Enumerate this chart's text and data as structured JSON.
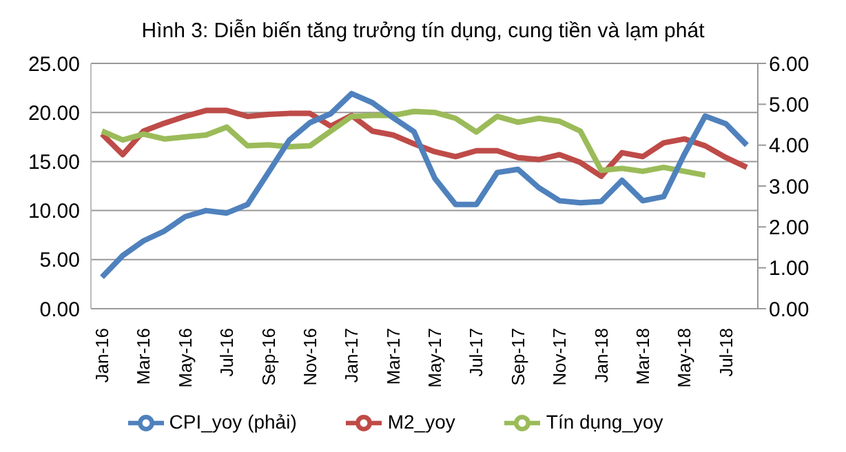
{
  "chart_data": {
    "type": "line",
    "title": "Hình 3: Diễn biến tăng trưởng tín dụng, cung tiền và lạm phát",
    "categories": [
      "Jan-16",
      null,
      "Mar-16",
      null,
      "May-16",
      null,
      "Jul-16",
      null,
      "Sep-16",
      null,
      "Nov-16",
      null,
      "Jan-17",
      null,
      "Mar-17",
      null,
      "May-17",
      null,
      "Jul-17",
      null,
      "Sep-17",
      null,
      "Nov-17",
      null,
      "Jan-18",
      null,
      "Mar-18",
      null,
      "May-18",
      null,
      "Jul-18",
      null
    ],
    "series": [
      {
        "name": "M2_yoy",
        "color": "#be4b48",
        "values": [
          17.8,
          15.7,
          18.1,
          18.9,
          19.6,
          20.2,
          20.2,
          19.6,
          19.8,
          19.9,
          19.9,
          18.6,
          19.7,
          18.1,
          17.7,
          16.8,
          16.0,
          15.5,
          16.1,
          16.1,
          15.4,
          15.2,
          15.7,
          14.9,
          13.5,
          15.9,
          15.5,
          16.9,
          17.3,
          16.6,
          15.4,
          14.4
        ]
      },
      {
        "name": "Tín dụng_yoy",
        "color": "#9bbb59",
        "values": [
          18.1,
          17.2,
          17.8,
          17.3,
          17.5,
          17.7,
          18.5,
          16.6,
          16.7,
          16.5,
          16.6,
          18.1,
          19.6,
          19.7,
          19.7,
          20.1,
          20.0,
          19.4,
          18.0,
          19.6,
          19.0,
          19.4,
          19.1,
          18.1,
          14.1,
          14.3,
          14.0,
          14.4,
          14.0,
          13.6,
          null,
          null
        ]
      },
      {
        "name": "CPI_yoy (phải)",
        "color": "#4f81bd",
        "axis": "y2",
        "values": [
          0.77,
          1.3,
          1.66,
          1.9,
          2.25,
          2.4,
          2.34,
          2.55,
          3.33,
          4.12,
          4.55,
          4.77,
          5.26,
          5.04,
          4.67,
          4.33,
          3.19,
          2.55,
          2.55,
          3.33,
          3.41,
          2.96,
          2.64,
          2.59,
          2.62,
          3.14,
          2.64,
          2.74,
          3.78,
          4.71,
          4.52,
          4.0
        ]
      }
    ],
    "ylim": [
      0,
      25
    ],
    "yticks": [
      {
        "value": 0,
        "label": "0.00"
      },
      {
        "value": 5,
        "label": "5.00"
      },
      {
        "value": 10,
        "label": "10.00"
      },
      {
        "value": 15,
        "label": "15.00"
      },
      {
        "value": 20,
        "label": "20.00"
      },
      {
        "value": 25,
        "label": "25.00"
      }
    ],
    "y2lim": [
      0,
      6
    ],
    "y2ticks": [
      {
        "value": 0,
        "label": "0.00"
      },
      {
        "value": 1,
        "label": "1.00"
      },
      {
        "value": 2,
        "label": "2.00"
      },
      {
        "value": 3,
        "label": "3.00"
      },
      {
        "value": 4,
        "label": "4.00"
      },
      {
        "value": 5,
        "label": "5.00"
      },
      {
        "value": 6,
        "label": "6.00"
      }
    ],
    "grid": "y",
    "legend": "bottom",
    "marker": "none",
    "line_style": "solid"
  }
}
